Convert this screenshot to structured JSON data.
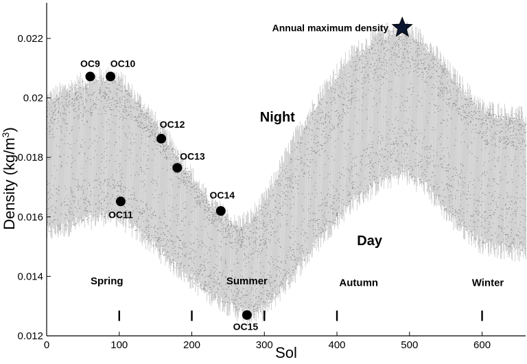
{
  "chart_data": {
    "type": "scatter",
    "xlabel": "Sol",
    "ylabel": "Density (kg/m",
    "ylabel_sup": "3",
    "ylabel_close": ")",
    "xlim": [
      0,
      660
    ],
    "ylim": [
      0.012,
      0.0232
    ],
    "xticks": [
      {
        "value": 0,
        "label": "0"
      },
      {
        "value": 100,
        "label": "100"
      },
      {
        "value": 200,
        "label": "200"
      },
      {
        "value": 300,
        "label": "300"
      },
      {
        "value": 400,
        "label": "400"
      },
      {
        "value": 500,
        "label": "500"
      },
      {
        "value": 600,
        "label": "600"
      }
    ],
    "yticks": [
      {
        "value": 0.012,
        "label": "0.012"
      },
      {
        "value": 0.014,
        "label": "0.014"
      },
      {
        "value": 0.016,
        "label": "0.016"
      },
      {
        "value": 0.018,
        "label": "0.018"
      },
      {
        "value": 0.02,
        "label": "0.02"
      },
      {
        "value": 0.022,
        "label": "0.022"
      }
    ],
    "season_separators": [
      100,
      200,
      300,
      400,
      600
    ],
    "envelope": {
      "x": [
        0,
        40,
        80,
        100,
        140,
        180,
        220,
        260,
        280,
        300,
        340,
        380,
        420,
        460,
        490,
        520,
        560,
        600,
        640,
        660
      ],
      "upper": [
        0.02,
        0.0205,
        0.0208,
        0.0207,
        0.0196,
        0.0182,
        0.0167,
        0.0158,
        0.016,
        0.0166,
        0.0186,
        0.0203,
        0.0215,
        0.0222,
        0.0224,
        0.022,
        0.0208,
        0.0197,
        0.0195,
        0.0194
      ],
      "night_mean": [
        0.0193,
        0.0198,
        0.0201,
        0.02,
        0.0191,
        0.0177,
        0.0163,
        0.0153,
        0.0152,
        0.0156,
        0.0175,
        0.0192,
        0.0205,
        0.0213,
        0.0216,
        0.0212,
        0.0201,
        0.019,
        0.0188,
        0.0187
      ],
      "day_mean": [
        0.0162,
        0.0165,
        0.0167,
        0.0166,
        0.0158,
        0.0148,
        0.014,
        0.0133,
        0.0131,
        0.0134,
        0.0146,
        0.016,
        0.0172,
        0.018,
        0.0183,
        0.0179,
        0.0168,
        0.016,
        0.0158,
        0.0157
      ],
      "lower": [
        0.0154,
        0.0157,
        0.016,
        0.0159,
        0.0151,
        0.0142,
        0.0134,
        0.0128,
        0.0126,
        0.0128,
        0.014,
        0.0153,
        0.0164,
        0.0171,
        0.0174,
        0.017,
        0.0158,
        0.015,
        0.0148,
        0.0147
      ]
    },
    "points": [
      {
        "name": "OC9",
        "x": 60,
        "y": 0.02072,
        "label": "OC9",
        "label_dx": 0,
        "label_dy": -14
      },
      {
        "name": "OC10",
        "x": 88,
        "y": 0.02072,
        "label": "OC10",
        "label_dx": 18,
        "label_dy": -14
      },
      {
        "name": "OC11",
        "x": 102,
        "y": 0.01652,
        "label": "OC11",
        "label_dx": 0,
        "label_dy": 24
      },
      {
        "name": "OC12",
        "x": 158,
        "y": 0.01863,
        "label": "OC12",
        "label_dx": 16,
        "label_dy": -16
      },
      {
        "name": "OC13",
        "x": 180,
        "y": 0.01765,
        "label": "OC13",
        "label_dx": 22,
        "label_dy": -12
      },
      {
        "name": "OC14",
        "x": 240,
        "y": 0.0162,
        "label": "OC14",
        "label_dx": 2,
        "label_dy": -18
      },
      {
        "name": "OC15",
        "x": 276,
        "y": 0.0127,
        "label": "OC15",
        "label_dx": -2,
        "label_dy": 22
      }
    ],
    "star": {
      "x": 490,
      "y": 0.02236,
      "label": "Annual maximum density"
    },
    "annotations": [
      {
        "name": "night",
        "text": "Night",
        "x": 318,
        "y": 0.0192,
        "size": 20
      },
      {
        "name": "day",
        "text": "Day",
        "x": 445,
        "y": 0.01505,
        "size": 20
      },
      {
        "name": "spring",
        "text": "Spring",
        "x": 83,
        "y": 0.01373,
        "size": 15
      },
      {
        "name": "summer",
        "text": "Summer",
        "x": 276,
        "y": 0.01373,
        "size": 15
      },
      {
        "name": "autumn",
        "text": "Autumn",
        "x": 430,
        "y": 0.01368,
        "size": 15
      },
      {
        "name": "winter",
        "text": "Winter",
        "x": 608,
        "y": 0.01368,
        "size": 15
      }
    ],
    "colors": {
      "scatter": "#8f8f8f",
      "marker": "#000000",
      "axis": "#000000"
    }
  }
}
